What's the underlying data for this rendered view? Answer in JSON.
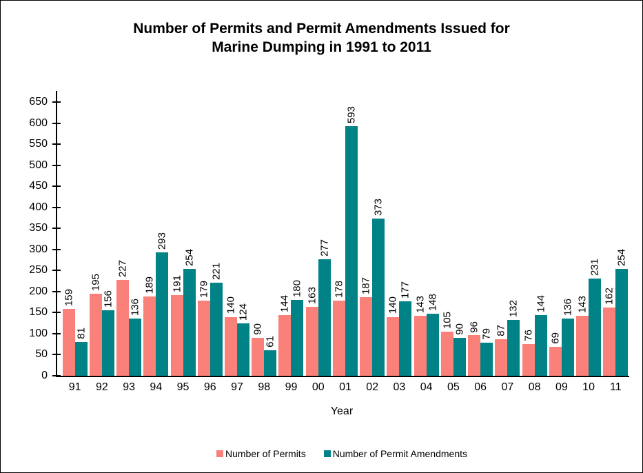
{
  "chart_data": {
    "type": "bar",
    "title": "Number of Permits and Permit Amendments Issued for\nMarine Dumping in 1991 to 2011",
    "xlabel": "Year",
    "ylabel": "",
    "categories": [
      "91",
      "92",
      "93",
      "94",
      "95",
      "96",
      "97",
      "98",
      "99",
      "00",
      "01",
      "02",
      "03",
      "04",
      "05",
      "06",
      "07",
      "08",
      "09",
      "10",
      "11"
    ],
    "series": [
      {
        "name": "Number of Permits",
        "color": "#FA8179",
        "values": [
          159,
          195,
          227,
          189,
          191,
          179,
          140,
          90,
          144,
          163,
          178,
          187,
          140,
          143,
          105,
          96,
          87,
          76,
          69,
          143,
          162
        ]
      },
      {
        "name": "Number of Permit Amendments",
        "color": "#018286",
        "values": [
          81,
          156,
          136,
          293,
          254,
          221,
          124,
          61,
          180,
          277,
          593,
          373,
          177,
          148,
          90,
          79,
          132,
          144,
          136,
          231,
          254
        ]
      }
    ],
    "ylim": [
      0,
      650
    ],
    "yticks": [
      0,
      50,
      100,
      150,
      200,
      250,
      300,
      350,
      400,
      450,
      500,
      550,
      600,
      650
    ],
    "grid": false,
    "legend_position": "bottom",
    "bar_labels_rotated": true,
    "axis_color": "#000000",
    "background_color": "#FFFFFF",
    "text_color": "#000000"
  }
}
